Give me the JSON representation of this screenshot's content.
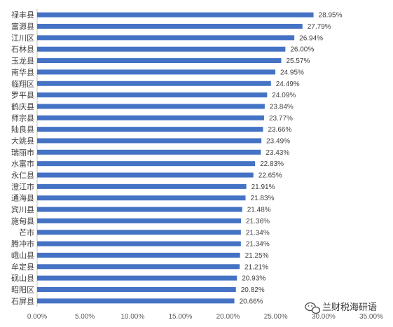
{
  "chart_data": {
    "type": "bar",
    "orientation": "horizontal",
    "categories": [
      "禄丰县",
      "富源县",
      "江川区",
      "石林县",
      "玉龙县",
      "南华县",
      "临翔区",
      "罗平县",
      "鹤庆县",
      "师宗县",
      "陆良县",
      "大姚县",
      "瑞丽市",
      "水富市",
      "永仁县",
      "澄江市",
      "通海县",
      "宾川县",
      "施甸县",
      "芒市",
      "腾冲市",
      "峨山县",
      "牟定县",
      "砚山县",
      "昭阳区",
      "石屏县"
    ],
    "values": [
      28.95,
      27.79,
      26.94,
      26.0,
      25.57,
      24.95,
      24.49,
      24.09,
      23.84,
      23.77,
      23.66,
      23.49,
      23.43,
      22.83,
      22.65,
      21.91,
      21.83,
      21.48,
      21.36,
      21.34,
      21.34,
      21.25,
      21.21,
      20.93,
      20.82,
      20.66
    ],
    "value_labels": [
      "28.95%",
      "27.79%",
      "26.94%",
      "26.00%",
      "25.57%",
      "24.95%",
      "24.49%",
      "24.09%",
      "23.84%",
      "23.77%",
      "23.66%",
      "23.49%",
      "23.43%",
      "22.83%",
      "22.65%",
      "21.91%",
      "21.83%",
      "21.48%",
      "21.36%",
      "21.34%",
      "21.34%",
      "21.25%",
      "21.21%",
      "20.93%",
      "20.82%",
      "20.66%"
    ],
    "xlim": [
      0,
      35
    ],
    "x_ticks": [
      "0.00%",
      "5.00%",
      "10.00%",
      "15.00%",
      "20.00%",
      "25.00%",
      "30.00%",
      "35.00%"
    ],
    "bar_color": "#4472c4",
    "grid": false
  },
  "watermark": {
    "text": "兰财税海研语",
    "icon": "wechat-icon"
  }
}
